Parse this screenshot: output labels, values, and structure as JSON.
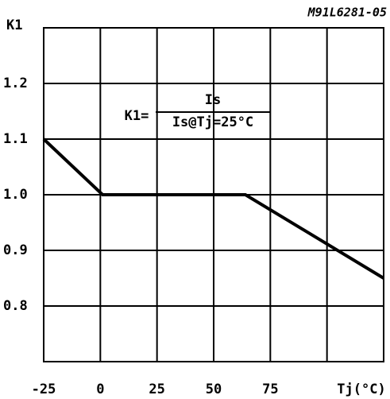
{
  "chart_data": {
    "type": "line",
    "code": "M91L6281-05",
    "ylabel": "K1",
    "xlabel": "Tj(°C)",
    "annotation": {
      "lhs": "K1=",
      "numerator": "Is",
      "denominator": "Is@Tj=25°C"
    },
    "x": [
      -25,
      1,
      64,
      125
    ],
    "series": [
      {
        "color": "#000000",
        "values": [
          1.1,
          1.0,
          1.0,
          0.85
        ]
      }
    ],
    "xlim": [
      -25,
      125
    ],
    "xticks": [
      -25,
      0,
      25,
      50,
      75
    ],
    "ylim": [
      0.7,
      1.3
    ],
    "yticks": [
      0.8,
      0.9,
      {
        "value": 1,
        "label": "1.0"
      },
      1.1,
      1.2
    ],
    "grid": true
  }
}
